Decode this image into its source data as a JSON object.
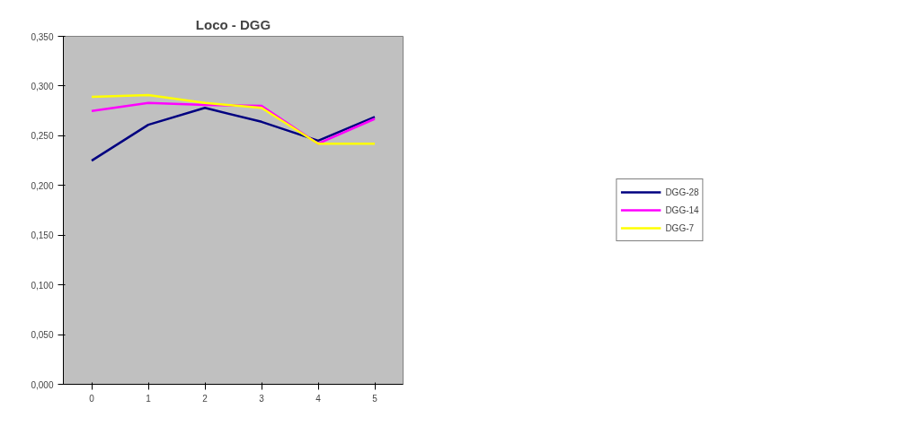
{
  "chart_data": {
    "type": "line",
    "title": "Loco - DGG",
    "categories": [
      "0",
      "1",
      "2",
      "3",
      "4",
      "5"
    ],
    "series": [
      {
        "name": "DGG-28",
        "color": "#000080",
        "values": [
          0.225,
          0.261,
          0.278,
          0.264,
          0.245,
          0.269
        ]
      },
      {
        "name": "DGG-14",
        "color": "#ff00ff",
        "values": [
          0.275,
          0.283,
          0.281,
          0.28,
          0.242,
          0.267
        ]
      },
      {
        "name": "DGG-7",
        "color": "#ffff00",
        "values": [
          0.289,
          0.291,
          0.283,
          0.278,
          0.242,
          0.242
        ]
      }
    ],
    "ylim": [
      0,
      0.35
    ],
    "yticks": [
      {
        "value": 0,
        "label": "0,000"
      },
      {
        "value": 0.05,
        "label": "0,050"
      },
      {
        "value": 0.1,
        "label": "0,100"
      },
      {
        "value": 0.15,
        "label": "0,150"
      },
      {
        "value": 0.2,
        "label": "0,200"
      },
      {
        "value": 0.25,
        "label": "0,250"
      },
      {
        "value": 0.3,
        "label": "0,300"
      },
      {
        "value": 0.35,
        "label": "0,350"
      }
    ],
    "grid": false,
    "legend": "right",
    "marker": "none",
    "line_style": "solid"
  }
}
